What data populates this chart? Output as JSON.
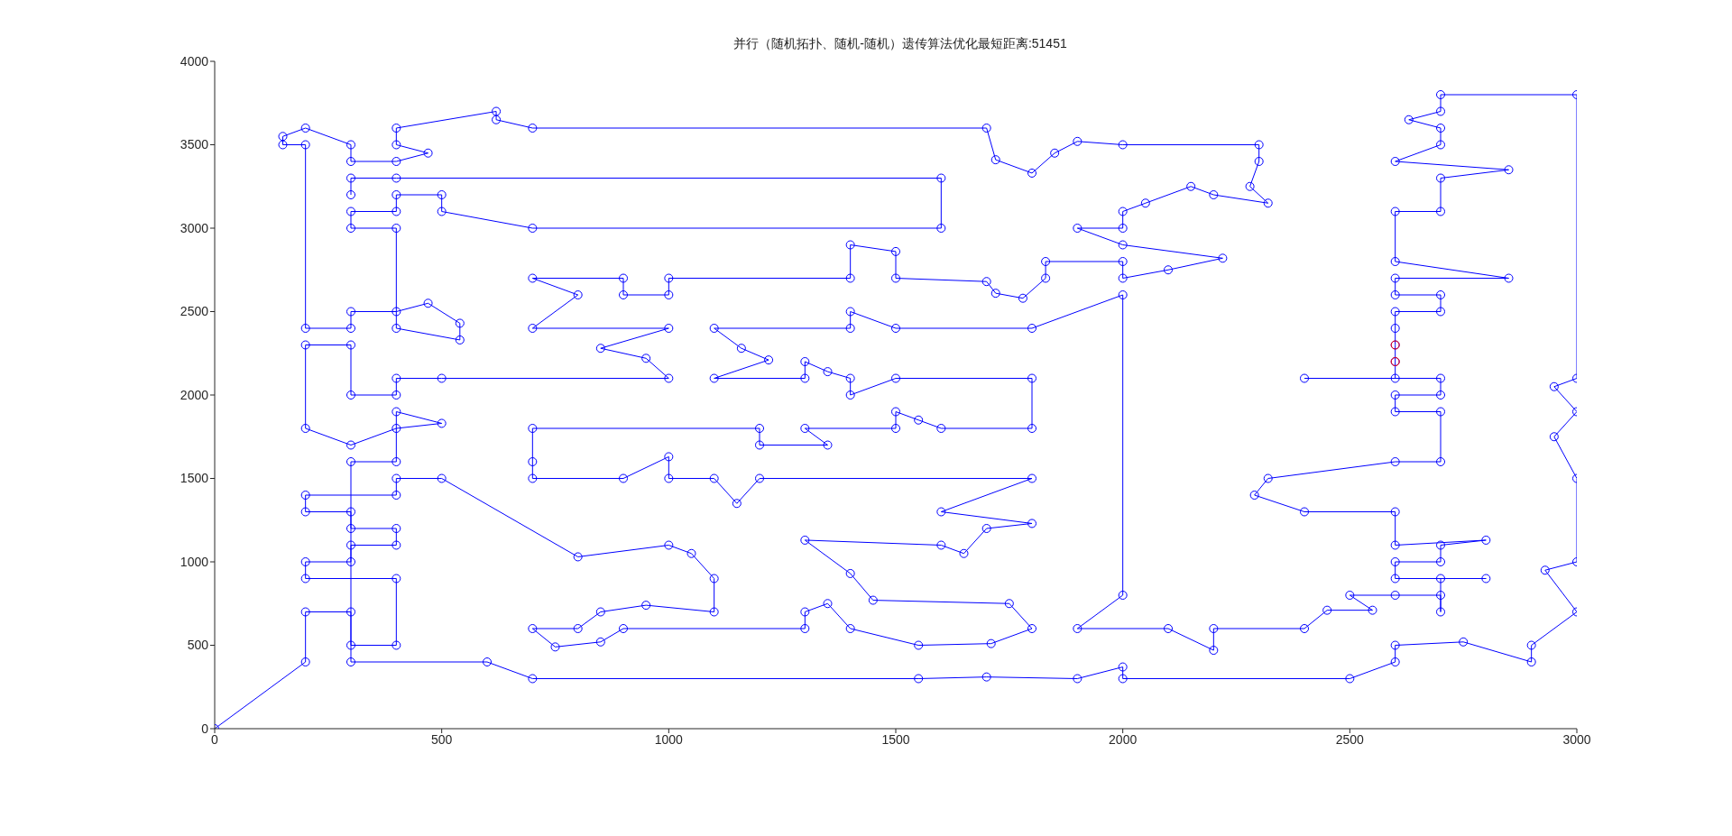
{
  "chart_data": {
    "type": "line",
    "title": "并行（随机拓扑、随机-随机）遗传算法优化最短距离:51451",
    "xlim": [
      0,
      3000
    ],
    "xticks": [
      0,
      500,
      1000,
      1500,
      2000,
      2500,
      3000
    ],
    "ylim": [
      0,
      4000
    ],
    "yticks": [
      0,
      500,
      1000,
      1500,
      2000,
      2500,
      3000,
      3500,
      4000
    ],
    "grid": false,
    "legend": false,
    "marker": "circle",
    "line_style": "solid",
    "series": [
      {
        "color": "#0000ff",
        "x": [
          0,
          200,
          200,
          300,
          300,
          400,
          400,
          200,
          200,
          300,
          300,
          400,
          400,
          300,
          300,
          200,
          200,
          400,
          400,
          500,
          800,
          1000,
          1050,
          1100,
          1100,
          950,
          850,
          800,
          700,
          750,
          850,
          900,
          1300,
          1300,
          1350,
          1400,
          1550,
          1710,
          1800,
          1750,
          1450,
          1400,
          1300,
          1600,
          1650,
          1700,
          1800,
          1600,
          1800,
          1200,
          1150,
          1100,
          1000,
          1000,
          900,
          700,
          700,
          700,
          1200,
          1200,
          1350,
          1300,
          1500,
          1500,
          1550,
          1600,
          1800,
          1800,
          1500,
          1400,
          1400,
          1350,
          1300,
          1300,
          1100,
          1220,
          1160,
          1100,
          1400,
          1400,
          1500,
          1800,
          2000,
          2000,
          1900,
          2100,
          2200,
          2200,
          2400,
          2450,
          2550,
          2500,
          2600,
          2700,
          2700,
          2700,
          2800,
          2600,
          2600,
          2700,
          2700,
          2800,
          2600,
          2600,
          2400,
          2290,
          2320,
          2600,
          2700,
          2700,
          2600,
          2600,
          2700,
          2700,
          2400,
          2600,
          2600,
          2600,
          2600,
          2600,
          2700,
          2700,
          2600,
          2600,
          2850,
          2600,
          2600,
          2700,
          2700,
          2850,
          2600,
          2700,
          2700,
          2630,
          2700,
          2700,
          3000,
          3000,
          2950,
          3000,
          2950,
          3000,
          3000,
          2930,
          3000,
          2900,
          2900,
          2750,
          2600,
          2600,
          2500,
          2000,
          2000,
          1900,
          1700,
          1550,
          700,
          600,
          300,
          300,
          400,
          400,
          500,
          400,
          300,
          200,
          200,
          300,
          300,
          400,
          400,
          500,
          1000,
          950,
          850,
          1000,
          700,
          800,
          700,
          900,
          900,
          1000,
          1000,
          1400,
          1400,
          1500,
          1500,
          1700,
          1720,
          1780,
          1830,
          1830,
          2000,
          2000,
          2100,
          2220,
          2000,
          1900,
          2000,
          2000,
          2050,
          2150,
          2200,
          2320,
          2280,
          2300,
          2300,
          2000,
          1900,
          1850,
          1800,
          1720,
          1700,
          700,
          620,
          620,
          400,
          400,
          470,
          400,
          300,
          300,
          200,
          150,
          150,
          200,
          200,
          300,
          300,
          400,
          470,
          540,
          540,
          400,
          400,
          300,
          300,
          400,
          400,
          500,
          500,
          700,
          1600,
          1600,
          400,
          300,
          300
        ],
        "values": [
          0,
          400,
          700,
          700,
          500,
          500,
          900,
          900,
          1000,
          1000,
          1100,
          1100,
          1200,
          1200,
          1300,
          1300,
          1400,
          1400,
          1500,
          1500,
          1030,
          1100,
          1050,
          900,
          700,
          740,
          700,
          600,
          600,
          490,
          520,
          600,
          600,
          700,
          750,
          600,
          500,
          510,
          600,
          750,
          770,
          930,
          1130,
          1100,
          1050,
          1200,
          1230,
          1300,
          1500,
          1500,
          1350,
          1500,
          1500,
          1630,
          1500,
          1500,
          1600,
          1800,
          1800,
          1700,
          1700,
          1800,
          1800,
          1900,
          1850,
          1800,
          1800,
          2100,
          2100,
          2000,
          2100,
          2140,
          2200,
          2100,
          2100,
          2210,
          2280,
          2400,
          2400,
          2500,
          2400,
          2400,
          2600,
          800,
          600,
          600,
          470,
          600,
          600,
          710,
          710,
          800,
          800,
          800,
          700,
          900,
          900,
          900,
          1000,
          1000,
          1100,
          1130,
          1100,
          1300,
          1300,
          1400,
          1500,
          1600,
          1600,
          1900,
          1900,
          2000,
          2000,
          2100,
          2100,
          2100,
          2200,
          2300,
          2400,
          2500,
          2500,
          2600,
          2600,
          2700,
          2700,
          2800,
          3100,
          3100,
          3300,
          3350,
          3400,
          3500,
          3600,
          3650,
          3700,
          3800,
          3800,
          2100,
          2050,
          1900,
          1750,
          1500,
          1000,
          950,
          700,
          500,
          400,
          520,
          500,
          400,
          300,
          300,
          370,
          300,
          310,
          300,
          300,
          400,
          400,
          1600,
          1600,
          1900,
          1830,
          1800,
          1700,
          1800,
          2300,
          2300,
          2000,
          2000,
          2100,
          2100,
          2100,
          2220,
          2280,
          2400,
          2400,
          2600,
          2700,
          2700,
          2600,
          2600,
          2700,
          2700,
          2900,
          2860,
          2700,
          2680,
          2610,
          2580,
          2700,
          2800,
          2800,
          2700,
          2750,
          2820,
          2900,
          3000,
          3000,
          3100,
          3150,
          3250,
          3200,
          3150,
          3250,
          3400,
          3500,
          3500,
          3520,
          3450,
          3330,
          3410,
          3600,
          3600,
          3650,
          3700,
          3600,
          3500,
          3450,
          3400,
          3400,
          3500,
          3600,
          3550,
          3500,
          3500,
          2400,
          2400,
          2500,
          2500,
          2550,
          2430,
          2330,
          2400,
          3000,
          3000,
          3100,
          3100,
          3200,
          3200,
          3100,
          3000,
          3000,
          3300,
          3300,
          3300,
          3200
        ]
      },
      {
        "type": "scatter",
        "color": "#ff0000",
        "x": [
          2600,
          2600
        ],
        "values": [
          2300,
          2200
        ]
      }
    ]
  }
}
